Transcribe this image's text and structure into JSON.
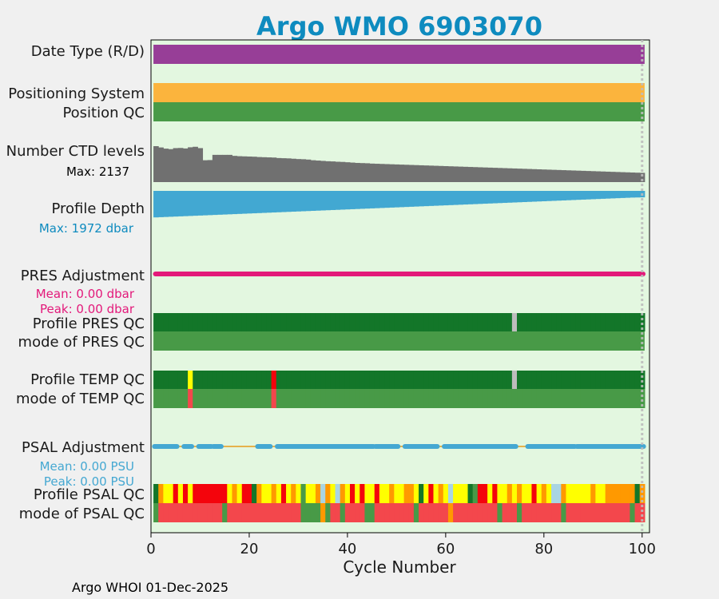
{
  "chart_data": {
    "type": "table",
    "title": "Argo WMO 6903070",
    "xlabel": "Cycle Number",
    "xlim": [
      0,
      101.5
    ],
    "xticks": [
      0,
      20,
      40,
      60,
      80,
      100
    ],
    "footer": "Argo WHOI 01-Dec-2025",
    "last_cycle": 100,
    "row_labels": {
      "data_type": "Date Type (R/D)",
      "positioning": "Positioning System",
      "position_qc": "Position QC",
      "ctd_levels": "Number CTD levels",
      "ctd_max": "Max: 2137",
      "profile_depth": "Profile Depth",
      "depth_max": "Max: 1972 dbar",
      "pres_adj": "PRES Adjustment",
      "pres_mean": "Mean: 0.00 dbar",
      "pres_peak": "Peak: 0.00 dbar",
      "profile_pres_qc": "Profile PRES QC",
      "mode_pres_qc": "mode of PRES QC",
      "profile_temp_qc": "Profile TEMP QC",
      "mode_temp_qc": "mode of TEMP QC",
      "psal_adj": "PSAL Adjustment",
      "psal_mean": "Mean: 0.00 PSU",
      "psal_peak": "Peak: 0.00 PSU",
      "profile_psal_qc": "Profile PSAL QC",
      "mode_psal_qc": "mode of PSAL QC"
    },
    "colors": {
      "title": "#0e8bbf",
      "data_type": "#973e97",
      "positioning": "#fbb43d",
      "qc_dark_green": "#137629",
      "qc_green": "#489a47",
      "qc_yellow": "#ffff00",
      "qc_orange": "#ff9900",
      "qc_red": "#f4040c",
      "qc_light_red": "#f3474c",
      "qc_light_blue": "#a9d5e3",
      "qc_gray": "#bdbdbd",
      "ctd_bars": "#707070",
      "depth_bars": "#42a8d2",
      "pres_adj": "#e3197a",
      "psal_adj": "#45a8d2",
      "psal_adj_line": "#e6b24c",
      "plot_bg": "#e3f7e0"
    },
    "ctd_levels_max": 2137,
    "ctd_levels": [
      2137,
      2060,
      1990,
      1960,
      2020,
      2030,
      2000,
      2070,
      2100,
      2020,
      1300,
      1310,
      1620,
      1620,
      1620,
      1620,
      1560,
      1540,
      1530,
      1520,
      1510,
      1490,
      1480,
      1470,
      1460,
      1430,
      1420,
      1410,
      1390,
      1370,
      1360,
      1340,
      1300,
      1280,
      1260,
      1240,
      1230,
      1210,
      1200,
      1180,
      1160,
      1140,
      1130,
      1120,
      1100,
      1090,
      1080,
      1070,
      1060,
      1050,
      1040,
      1030,
      1020,
      1010,
      1000,
      990,
      980,
      970,
      960,
      950,
      940,
      930,
      920,
      910,
      900,
      890,
      880,
      870,
      860,
      850,
      840,
      830,
      820,
      810,
      800,
      790,
      780,
      770,
      760,
      750,
      740,
      730,
      720,
      710,
      700,
      690,
      680,
      670,
      660,
      650,
      640,
      630,
      620,
      610,
      600,
      590,
      580,
      570,
      560,
      550,
      540
    ],
    "profile_depth_max": 1972,
    "profile_depth": [
      1972,
      1950,
      1930,
      1910,
      1890,
      1870,
      1850,
      1830,
      1810,
      1790,
      1770,
      1750,
      1730,
      1710,
      1690,
      1670,
      1650,
      1630,
      1610,
      1590,
      1570,
      1550,
      1530,
      1510,
      1490,
      1470,
      1450,
      1430,
      1410,
      1390,
      1370,
      1350,
      1330,
      1310,
      1290,
      1270,
      1250,
      1230,
      1210,
      1190,
      1170,
      1150,
      1130,
      1110,
      1090,
      1070,
      1050,
      1030,
      1010,
      990,
      970,
      950,
      930,
      910,
      890,
      870,
      850,
      830,
      810,
      790,
      770,
      750,
      730,
      710,
      690,
      670,
      650,
      630,
      610,
      590,
      570,
      550,
      530,
      510,
      490,
      470,
      450,
      430,
      410,
      390,
      370,
      350,
      330,
      310,
      290,
      270,
      250,
      230,
      210,
      190,
      170,
      150,
      130,
      110,
      90,
      70,
      50,
      30,
      20,
      10,
      5
    ],
    "pres_qc_gaps": [
      74
    ],
    "temp_qc_markers": [
      {
        "cycle": 8,
        "profile": "Y",
        "mode": "LR"
      },
      {
        "cycle": 25,
        "profile": "R",
        "mode": "LR"
      },
      {
        "cycle": 74,
        "profile": "GR",
        "mode": ""
      }
    ],
    "psal_adj_segments": [
      [
        1,
        5
      ],
      [
        7,
        8
      ],
      [
        10,
        12
      ],
      [
        13,
        14
      ],
      [
        22,
        24
      ],
      [
        26,
        45
      ],
      [
        46,
        50
      ],
      [
        52,
        58
      ],
      [
        60,
        74
      ],
      [
        77,
        86
      ],
      [
        87,
        100
      ]
    ],
    "psal_profile_qc": "DOYYRYRYRRRRRRRYOYRRDOYYOYRYOYGYYOBOYBOYRYRYYRYYOYYOOYDYRYOYBYYYDGRRYRYYOYOYYRYOYBBOYYYYYOYYOOOOOO",
    "psal_mode_qc": "GLLLLLLLLLLLLLGLLLLLLLLLLLLLLLGGGGOGLLGLLLLGGLLLLLLLLGLLLLLLOLLLLLLLLLGLLLGLLLLLLLLGLLLLLLLLLLLLL"
  }
}
